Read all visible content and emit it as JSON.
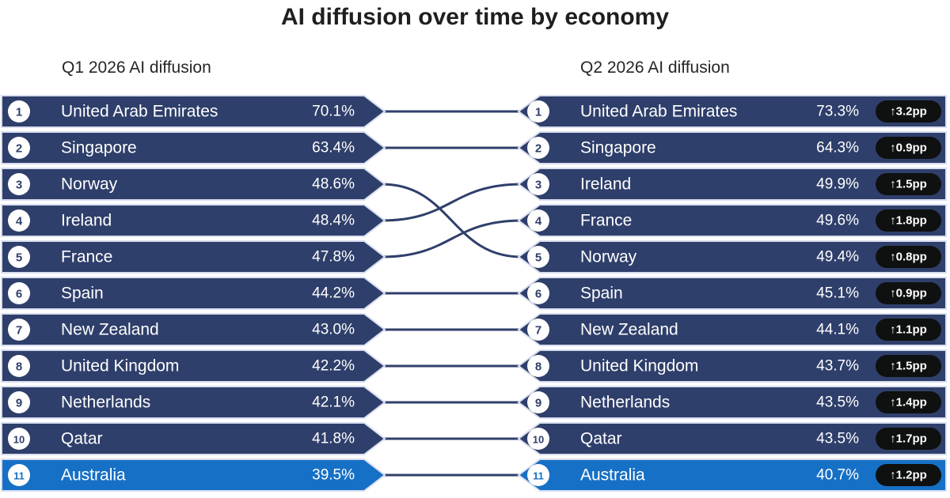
{
  "title": "AI diffusion over time by economy",
  "left_header": "Q1 2026 AI diffusion",
  "right_header": "Q2 2026 AI diffusion",
  "colors": {
    "row": "#2f3f6b",
    "row_highlight": "#1670c6",
    "row_border": "#d9def0",
    "connector": "#2f3f6b",
    "badge": "#0f1010",
    "rank_circle": "#ffffff"
  },
  "chart_data": {
    "type": "table",
    "title": "AI diffusion over time by economy",
    "columns": [
      "Q1 2026 AI diffusion",
      "Q2 2026 AI diffusion"
    ],
    "q1": [
      {
        "rank": "1",
        "name": "United Arab Emirates",
        "value": "70.1%"
      },
      {
        "rank": "2",
        "name": "Singapore",
        "value": "63.4%"
      },
      {
        "rank": "3",
        "name": "Norway",
        "value": "48.6%"
      },
      {
        "rank": "4",
        "name": "Ireland",
        "value": "48.4%"
      },
      {
        "rank": "5",
        "name": "France",
        "value": "47.8%"
      },
      {
        "rank": "6",
        "name": "Spain",
        "value": "44.2%"
      },
      {
        "rank": "7",
        "name": "New Zealand",
        "value": "43.0%"
      },
      {
        "rank": "8",
        "name": "United Kingdom",
        "value": "42.2%"
      },
      {
        "rank": "9",
        "name": "Netherlands",
        "value": "42.1%"
      },
      {
        "rank": "10",
        "name": "Qatar",
        "value": "41.8%"
      },
      {
        "rank": "11",
        "name": "Australia",
        "value": "39.5%",
        "highlight": true
      }
    ],
    "q2": [
      {
        "rank": "1",
        "name": "United Arab Emirates",
        "value": "73.3%",
        "change": "↑3.2pp"
      },
      {
        "rank": "2",
        "name": "Singapore",
        "value": "64.3%",
        "change": "↑0.9pp"
      },
      {
        "rank": "3",
        "name": "Ireland",
        "value": "49.9%",
        "change": "↑1.5pp"
      },
      {
        "rank": "4",
        "name": "France",
        "value": "49.6%",
        "change": "↑1.8pp"
      },
      {
        "rank": "5",
        "name": "Norway",
        "value": "49.4%",
        "change": "↑0.8pp"
      },
      {
        "rank": "6",
        "name": "Spain",
        "value": "45.1%",
        "change": "↑0.9pp"
      },
      {
        "rank": "7",
        "name": "New Zealand",
        "value": "44.1%",
        "change": "↑1.1pp"
      },
      {
        "rank": "8",
        "name": "United Kingdom",
        "value": "43.7%",
        "change": "↑1.5pp"
      },
      {
        "rank": "9",
        "name": "Netherlands",
        "value": "43.5%",
        "change": "↑1.4pp"
      },
      {
        "rank": "10",
        "name": "Qatar",
        "value": "43.5%",
        "change": "↑1.7pp"
      },
      {
        "rank": "11",
        "name": "Australia",
        "value": "40.7%",
        "change": "↑1.2pp",
        "highlight": true
      }
    ]
  }
}
